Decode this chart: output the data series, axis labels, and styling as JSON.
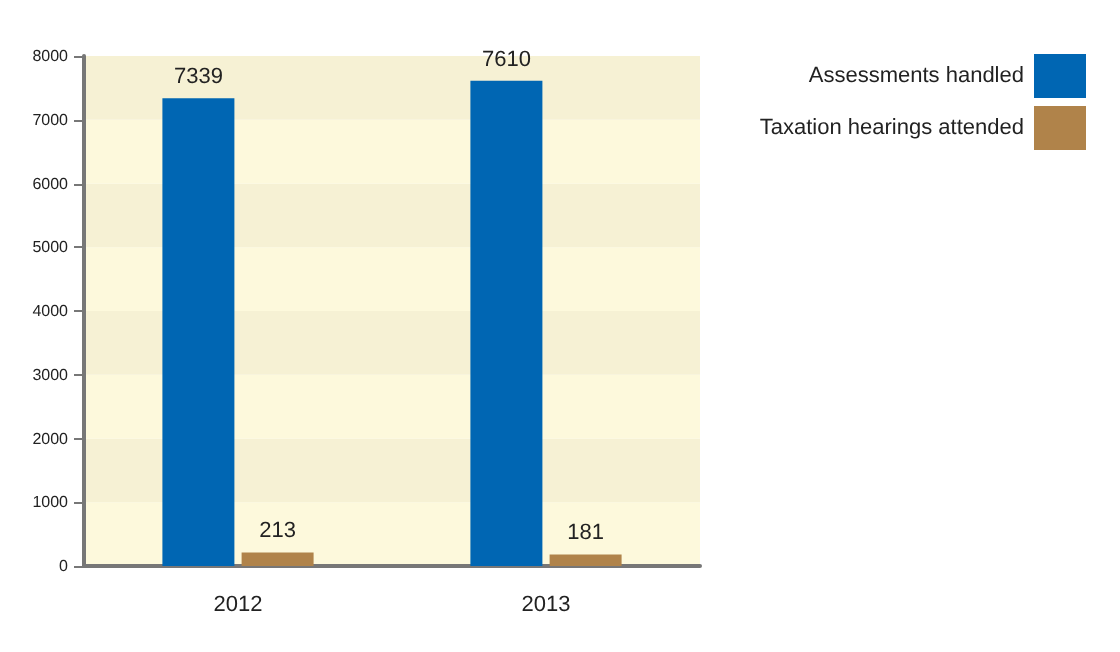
{
  "chart_data": {
    "type": "bar",
    "categories": [
      "2012",
      "2013"
    ],
    "series": [
      {
        "name": "Assessments handled",
        "color": "#0066b3",
        "values": [
          7339,
          7610
        ]
      },
      {
        "name": "Taxation hearings attended",
        "color": "#b0834a",
        "values": [
          213,
          181
        ]
      }
    ],
    "ylim": [
      0,
      8000
    ],
    "yticks": [
      0,
      1000,
      2000,
      3000,
      4000,
      5000,
      6000,
      7000,
      8000
    ],
    "data_labels": true,
    "legend": "top right",
    "grid": false
  }
}
